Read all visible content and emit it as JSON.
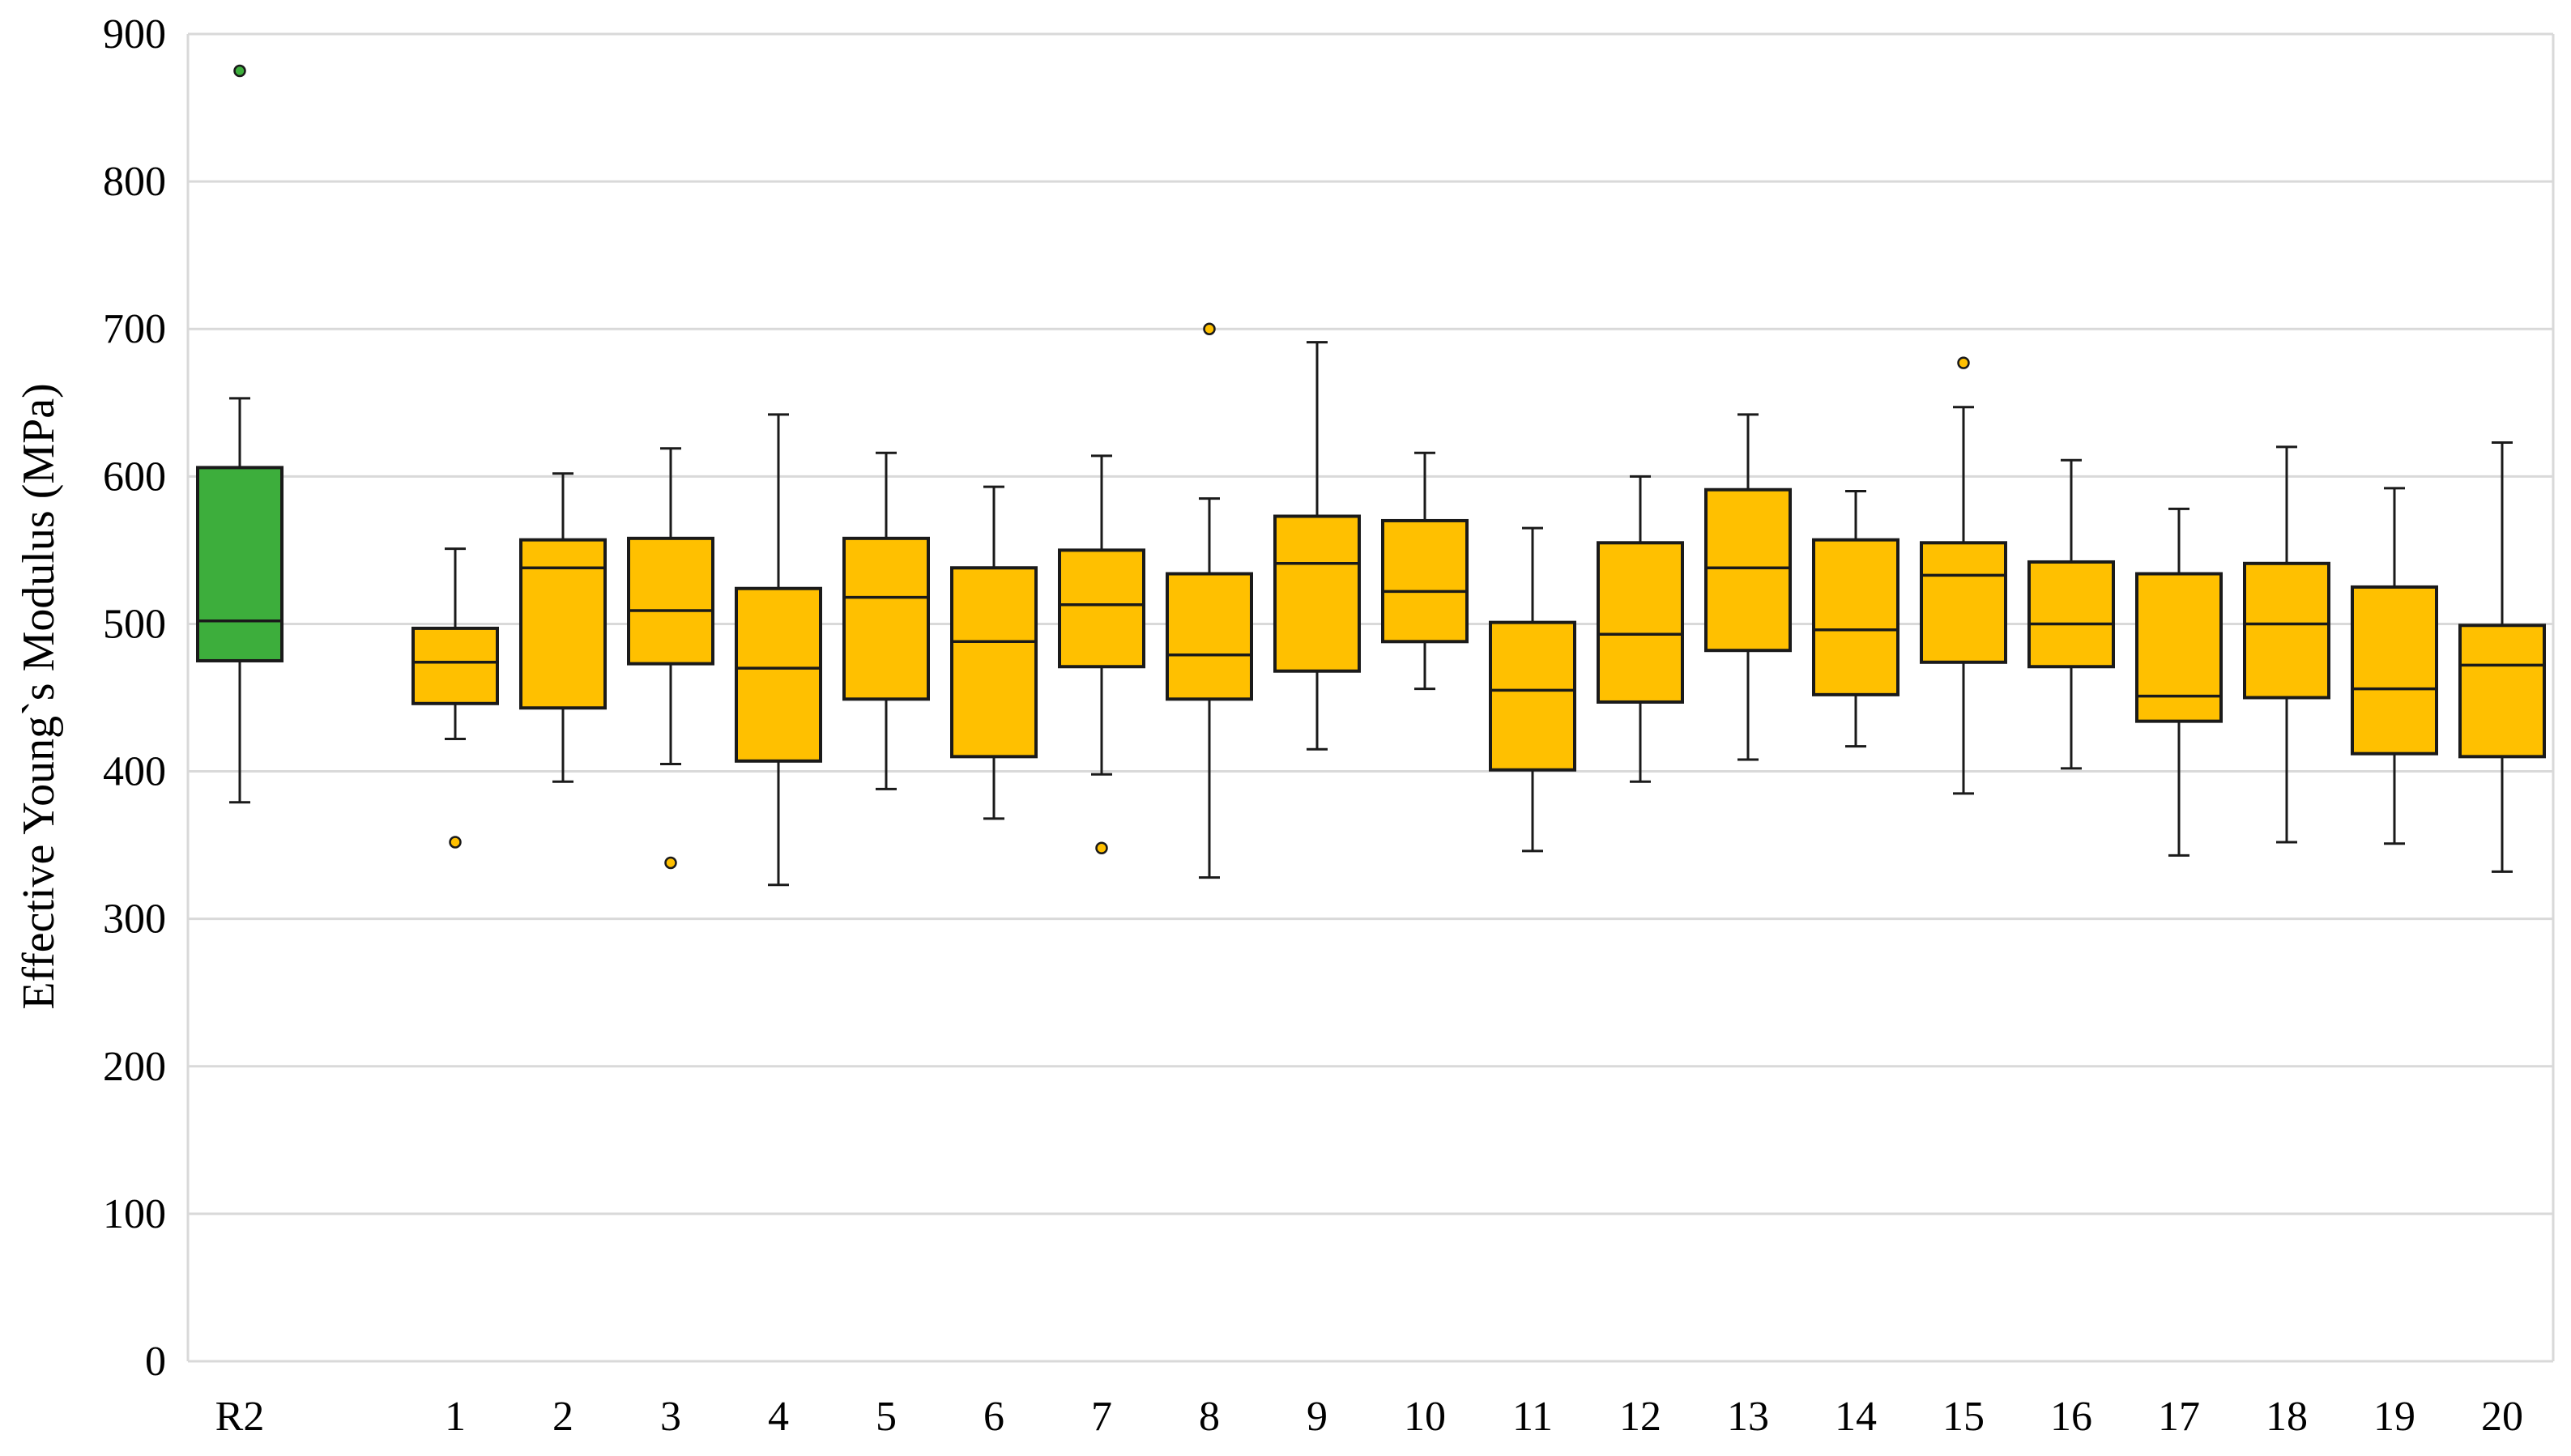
{
  "chart_data": {
    "type": "boxplot",
    "title": "",
    "xlabel": "",
    "ylabel": "Effective Young`s Modulus (MPa)",
    "ylim": [
      0,
      900
    ],
    "yticks": [
      "0",
      "100",
      "200",
      "300",
      "400",
      "500",
      "600",
      "700",
      "800",
      "900"
    ],
    "grid": "horizontal",
    "colors": {
      "reference": "#3dae3c",
      "sample": "#ffc000",
      "edge": "#1a1a1a",
      "grid": "#d9d9d9"
    },
    "boxes": [
      {
        "label": "R2",
        "group": "reference",
        "whisker_low": 379,
        "q1": 475,
        "median": 502,
        "q3": 606,
        "whisker_high": 653,
        "outliers": [
          875
        ]
      },
      {
        "label": "1",
        "group": "sample",
        "whisker_low": 422,
        "q1": 446,
        "median": 474,
        "q3": 497,
        "whisker_high": 551,
        "outliers": [
          352
        ]
      },
      {
        "label": "2",
        "group": "sample",
        "whisker_low": 393,
        "q1": 443,
        "median": 538,
        "q3": 557,
        "whisker_high": 602,
        "outliers": []
      },
      {
        "label": "3",
        "group": "sample",
        "whisker_low": 405,
        "q1": 473,
        "median": 509,
        "q3": 558,
        "whisker_high": 619,
        "outliers": [
          338
        ]
      },
      {
        "label": "4",
        "group": "sample",
        "whisker_low": 323,
        "q1": 407,
        "median": 470,
        "q3": 524,
        "whisker_high": 642,
        "outliers": []
      },
      {
        "label": "5",
        "group": "sample",
        "whisker_low": 388,
        "q1": 449,
        "median": 518,
        "q3": 558,
        "whisker_high": 616,
        "outliers": []
      },
      {
        "label": "6",
        "group": "sample",
        "whisker_low": 368,
        "q1": 410,
        "median": 488,
        "q3": 538,
        "whisker_high": 593,
        "outliers": []
      },
      {
        "label": "7",
        "group": "sample",
        "whisker_low": 398,
        "q1": 471,
        "median": 513,
        "q3": 550,
        "whisker_high": 614,
        "outliers": [
          348
        ]
      },
      {
        "label": "8",
        "group": "sample",
        "whisker_low": 328,
        "q1": 449,
        "median": 479,
        "q3": 534,
        "whisker_high": 585,
        "outliers": [
          700
        ]
      },
      {
        "label": "9",
        "group": "sample",
        "whisker_low": 415,
        "q1": 468,
        "median": 541,
        "q3": 573,
        "whisker_high": 691,
        "outliers": []
      },
      {
        "label": "10",
        "group": "sample",
        "whisker_low": 456,
        "q1": 488,
        "median": 522,
        "q3": 570,
        "whisker_high": 616,
        "outliers": []
      },
      {
        "label": "11",
        "group": "sample",
        "whisker_low": 346,
        "q1": 401,
        "median": 455,
        "q3": 501,
        "whisker_high": 565,
        "outliers": []
      },
      {
        "label": "12",
        "group": "sample",
        "whisker_low": 393,
        "q1": 447,
        "median": 493,
        "q3": 555,
        "whisker_high": 600,
        "outliers": []
      },
      {
        "label": "13",
        "group": "sample",
        "whisker_low": 408,
        "q1": 482,
        "median": 538,
        "q3": 591,
        "whisker_high": 642,
        "outliers": []
      },
      {
        "label": "14",
        "group": "sample",
        "whisker_low": 417,
        "q1": 452,
        "median": 496,
        "q3": 557,
        "whisker_high": 590,
        "outliers": []
      },
      {
        "label": "15",
        "group": "sample",
        "whisker_low": 385,
        "q1": 474,
        "median": 533,
        "q3": 555,
        "whisker_high": 647,
        "outliers": [
          677
        ]
      },
      {
        "label": "16",
        "group": "sample",
        "whisker_low": 402,
        "q1": 471,
        "median": 500,
        "q3": 542,
        "whisker_high": 611,
        "outliers": []
      },
      {
        "label": "17",
        "group": "sample",
        "whisker_low": 343,
        "q1": 434,
        "median": 451,
        "q3": 534,
        "whisker_high": 578,
        "outliers": []
      },
      {
        "label": "18",
        "group": "sample",
        "whisker_low": 352,
        "q1": 450,
        "median": 500,
        "q3": 541,
        "whisker_high": 620,
        "outliers": []
      },
      {
        "label": "19",
        "group": "sample",
        "whisker_low": 351,
        "q1": 412,
        "median": 456,
        "q3": 525,
        "whisker_high": 592,
        "outliers": []
      },
      {
        "label": "20",
        "group": "sample",
        "whisker_low": 332,
        "q1": 410,
        "median": 472,
        "q3": 499,
        "whisker_high": 623,
        "outliers": []
      }
    ]
  }
}
